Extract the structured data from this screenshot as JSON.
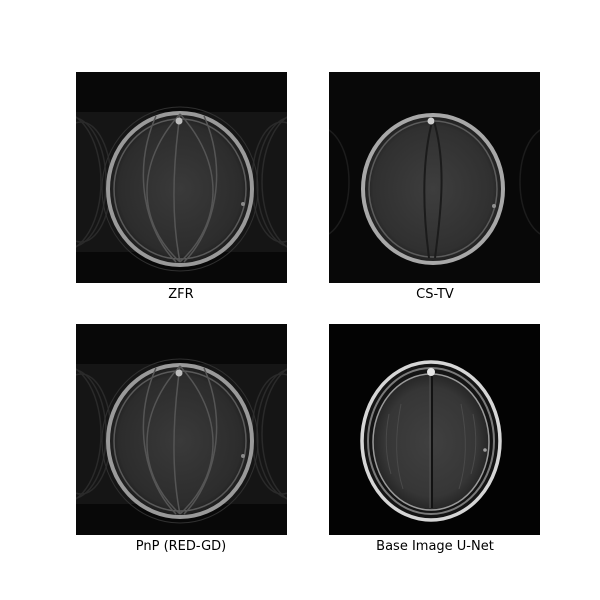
{
  "figure": {
    "panels": [
      {
        "id": "zfr",
        "caption": "ZFR"
      },
      {
        "id": "cs-tv",
        "caption": "CS-TV"
      },
      {
        "id": "pnp-red-gd",
        "caption": "PnP (RED-GD)"
      },
      {
        "id": "base-image-unet",
        "caption": "Base Image U-Net"
      }
    ]
  }
}
